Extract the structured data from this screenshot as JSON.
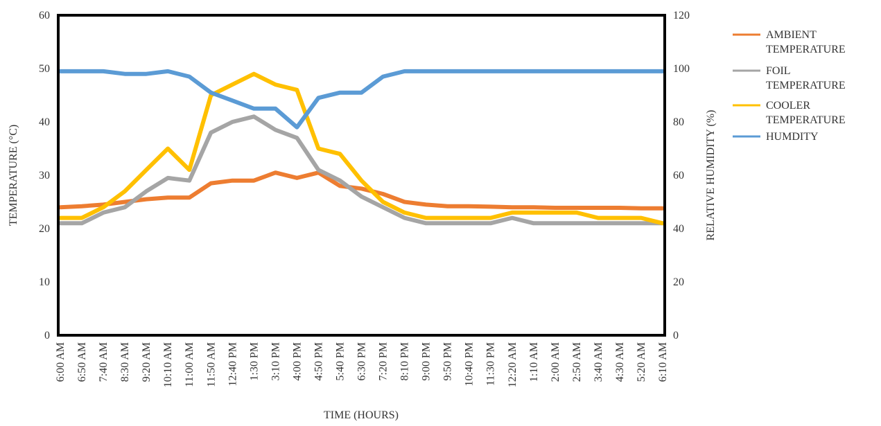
{
  "chart_data": {
    "type": "line",
    "title": "",
    "xlabel": "TIME (HOURS)",
    "ylabel": "TEMPERATURE (°C)",
    "y2label": "RELATIVE HUMIDITY (%)",
    "ylim": [
      0,
      60
    ],
    "y2lim": [
      0,
      120
    ],
    "yticks": [
      "0",
      "10",
      "20",
      "30",
      "40",
      "50",
      "60"
    ],
    "y2ticks": [
      "0",
      "20",
      "40",
      "60",
      "80",
      "100",
      "120"
    ],
    "grid": false,
    "legend_position": "right",
    "x_tick_labels": [
      "6:00 AM",
      "6:50 AM",
      "7:40 AM",
      "8:30 AM",
      "9:20 AM",
      "10:10 AM",
      "11:00 AM",
      "11:50 AM",
      "12:40 PM",
      "1:30 PM",
      "3:10 PM",
      "4:00 PM",
      "4:50 PM",
      "5:40 PM",
      "6:30 PM",
      "7:20 PM",
      "8:10 PM",
      "9:00 PM",
      "9:50 PM",
      "10:40 PM",
      "11:30 PM",
      "12:20 AM",
      "1:10 AM",
      "2:00 AM",
      "2:50 AM",
      "3:40 AM",
      "4:30 AM",
      "5:20 AM",
      "6:10 AM"
    ],
    "series": [
      {
        "name": "AMBIENT TEMPERATURE",
        "axis": "left",
        "color": "#ED7D31",
        "values": [
          24,
          24.2,
          24.5,
          25,
          25.5,
          25.8,
          25.8,
          28.5,
          29,
          29,
          30.5,
          29.5,
          30.5,
          28,
          27.5,
          26.5,
          25,
          24.5,
          24.2,
          24.2,
          24.1,
          24,
          24,
          23.9,
          23.9,
          23.9,
          23.9,
          23.8,
          23.8
        ]
      },
      {
        "name": "FOIL TEMPERATURE",
        "axis": "left",
        "color": "#A5A5A5",
        "values": [
          21,
          21,
          23,
          24,
          27,
          29.5,
          29,
          38,
          40,
          41,
          38.5,
          37,
          31,
          29,
          26,
          24,
          22,
          21,
          21,
          21,
          21,
          22,
          21,
          21,
          21,
          21,
          21,
          21,
          21
        ]
      },
      {
        "name": "COOLER TEMPERATURE",
        "axis": "left",
        "color": "#FFC000",
        "values": [
          22,
          22,
          24,
          27,
          31,
          35,
          31,
          45,
          47,
          49,
          47,
          46,
          35,
          34,
          29,
          25,
          23,
          22,
          22,
          22,
          22,
          23,
          23,
          23,
          23,
          22,
          22,
          22,
          21
        ]
      },
      {
        "name": "HUMDITY",
        "axis": "right",
        "color": "#5B9BD5",
        "values": [
          99,
          99,
          99,
          98,
          98,
          99,
          97,
          91,
          88,
          85,
          85,
          78,
          89,
          91,
          91,
          97,
          99,
          99,
          99,
          99,
          99,
          99,
          99,
          99,
          99,
          99,
          99,
          99,
          99
        ]
      }
    ]
  }
}
